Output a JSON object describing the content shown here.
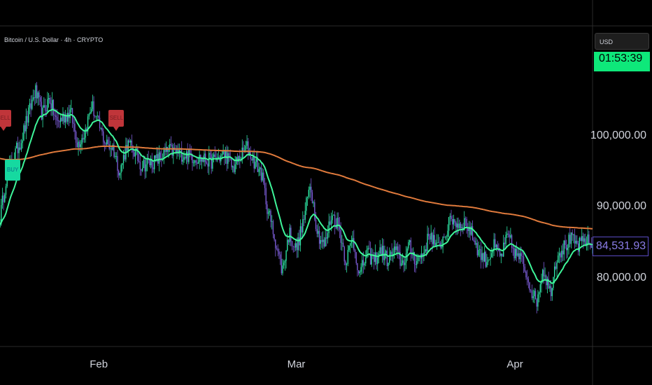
{
  "header": {
    "symbol": "Bitcoin / U.S. Dollar · 4h · CRYPTO",
    "currency": "USD"
  },
  "countdown": "01:53:39",
  "last_price": "84,531.93",
  "colors": {
    "background": "#000000",
    "up_candle": "#2ee6a6",
    "down_candle": "#7b5cd6",
    "fast_ma": "#3ef59a",
    "slow_ma": "#e07a3c",
    "buy_signal": "#16d9a0",
    "sell_signal": "#c0353a",
    "countdown_bg": "#0ee87a",
    "price_tag_border": "#5b4cc4",
    "price_tag_text": "#8b7de8"
  },
  "signals": [
    {
      "type": "sell",
      "label": "SELL",
      "time": 0.5
    },
    {
      "type": "sell",
      "label": "SELL",
      "time": 16.5
    },
    {
      "type": "buy",
      "label": "BUY",
      "time": 1.8
    }
  ],
  "chart_data": {
    "type": "candlestick",
    "title": "Bitcoin / U.S. Dollar · 4h · CRYPTO",
    "x_axis": {
      "ticks": [
        {
          "label": "Feb",
          "time": 14
        },
        {
          "label": "Mar",
          "time": 42
        },
        {
          "label": "Apr",
          "time": 73
        }
      ]
    },
    "y_axis": {
      "ticks": [
        {
          "label": "100,000.00",
          "value": 100000
        },
        {
          "label": "90,000.00",
          "value": 90000
        },
        {
          "label": "80,000.00",
          "value": 80000
        }
      ],
      "range": [
        70500,
        115500
      ]
    },
    "price_anchors": [
      [
        0,
        88500
      ],
      [
        1,
        95000
      ],
      [
        3,
        99500
      ],
      [
        5,
        106500
      ],
      [
        6,
        103000
      ],
      [
        7,
        105500
      ],
      [
        8,
        102000
      ],
      [
        10,
        103500
      ],
      [
        11,
        99000
      ],
      [
        12,
        100500
      ],
      [
        13,
        104500
      ],
      [
        14,
        101500
      ],
      [
        15,
        99000
      ],
      [
        16,
        98500
      ],
      [
        17,
        95000
      ],
      [
        18,
        99000
      ],
      [
        19,
        98000
      ],
      [
        20,
        96000
      ],
      [
        22,
        96500
      ],
      [
        24,
        98000
      ],
      [
        26,
        97500
      ],
      [
        28,
        97000
      ],
      [
        30,
        96500
      ],
      [
        32,
        97500
      ],
      [
        33,
        95500
      ],
      [
        35,
        98500
      ],
      [
        36,
        96500
      ],
      [
        37,
        95000
      ],
      [
        38,
        89500
      ],
      [
        39,
        85500
      ],
      [
        40,
        81000
      ],
      [
        41,
        86500
      ],
      [
        42,
        84000
      ],
      [
        43,
        88000
      ],
      [
        44,
        93500
      ],
      [
        45,
        86500
      ],
      [
        46,
        84500
      ],
      [
        47,
        89000
      ],
      [
        48,
        87500
      ],
      [
        49,
        82500
      ],
      [
        50,
        85500
      ],
      [
        51,
        80500
      ],
      [
        52,
        83500
      ],
      [
        53,
        82500
      ],
      [
        54,
        84000
      ],
      [
        55,
        82500
      ],
      [
        56,
        84000
      ],
      [
        57,
        82000
      ],
      [
        58,
        84500
      ],
      [
        59,
        82500
      ],
      [
        60,
        83500
      ],
      [
        61,
        86500
      ],
      [
        62,
        84000
      ],
      [
        63,
        86000
      ],
      [
        64,
        88500
      ],
      [
        65,
        87500
      ],
      [
        66,
        88000
      ],
      [
        67,
        86000
      ],
      [
        68,
        83500
      ],
      [
        69,
        82500
      ],
      [
        70,
        84500
      ],
      [
        71,
        83000
      ],
      [
        72,
        86000
      ],
      [
        73,
        83500
      ],
      [
        74,
        82500
      ],
      [
        75,
        79500
      ],
      [
        76,
        76500
      ],
      [
        77,
        81500
      ],
      [
        78,
        78000
      ],
      [
        79,
        83500
      ],
      [
        80,
        84500
      ],
      [
        81,
        85500
      ],
      [
        82,
        84500
      ],
      [
        83,
        85500
      ],
      [
        84,
        84531.93
      ]
    ],
    "series": [
      {
        "kind": "candles",
        "up_color": "#2ee6a6",
        "down_color": "#7b5cd6"
      },
      {
        "kind": "line",
        "color": "#3ef59a",
        "period": 20
      },
      {
        "kind": "line",
        "color": "#e07a3c",
        "period": 200
      }
    ],
    "last_price": 84531.93,
    "grid": false
  }
}
